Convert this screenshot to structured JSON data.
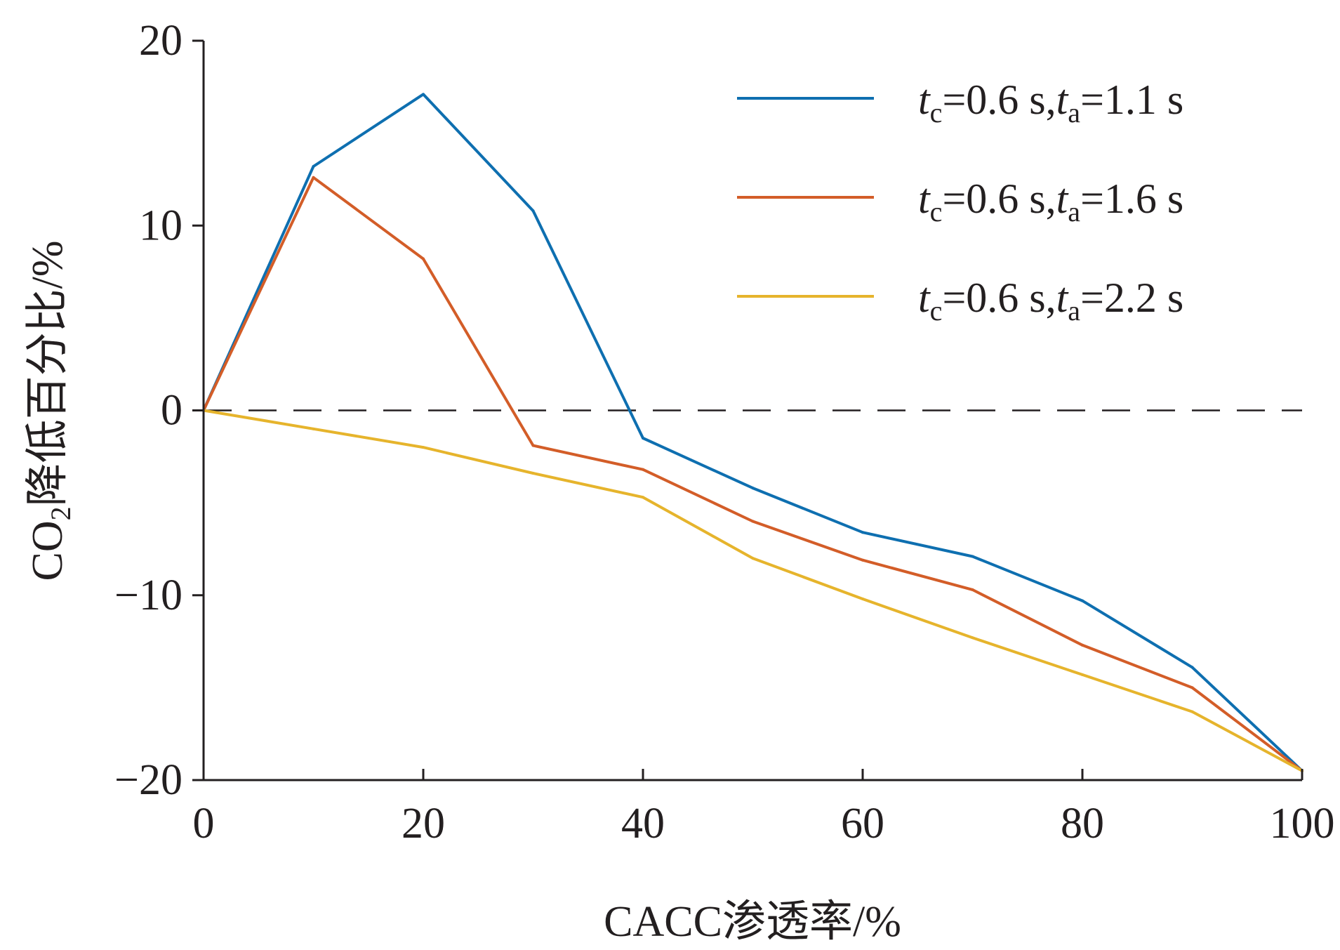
{
  "chart_data": {
    "type": "line",
    "xlabel": "CACC渗透率/%",
    "ylabel": {
      "prefix": "CO",
      "subscript": "2",
      "suffix": "降低百分比/%"
    },
    "xlim": [
      0,
      100
    ],
    "ylim": [
      -20,
      20
    ],
    "xticks": [
      0,
      20,
      40,
      60,
      80,
      100
    ],
    "yticks": [
      20,
      10,
      0,
      -10,
      -20
    ],
    "ytick_labels": [
      "20",
      "10",
      "0",
      "−10",
      "−20"
    ],
    "reference_line": {
      "y": 0,
      "style": "dashed"
    },
    "legend_position": "top-right",
    "x": [
      0,
      10,
      20,
      30,
      40,
      50,
      60,
      70,
      80,
      90,
      100
    ],
    "series": [
      {
        "name": "tc=0.6 s,ta=1.1 s",
        "label_parts": {
          "t1": "t",
          "s1": "c",
          "mid": "=0.6 s,",
          "t2": "t",
          "s2": "a",
          "end": "=1.1 s"
        },
        "color": "#0e6fb0",
        "values": [
          0,
          13.2,
          17.1,
          10.8,
          -1.5,
          -4.2,
          -6.6,
          -7.9,
          -10.3,
          -13.9,
          -19.5
        ]
      },
      {
        "name": "tc=0.6 s,ta=1.6 s",
        "label_parts": {
          "t1": "t",
          "s1": "c",
          "mid": "=0.6 s,",
          "t2": "t",
          "s2": "a",
          "end": "=1.6 s"
        },
        "color": "#d35d28",
        "values": [
          0,
          12.6,
          8.2,
          -1.9,
          -3.2,
          -6.0,
          -8.1,
          -9.7,
          -12.7,
          -15.0,
          -19.5
        ]
      },
      {
        "name": "tc=0.6 s,ta=2.2 s",
        "label_parts": {
          "t1": "t",
          "s1": "c",
          "mid": "=0.6 s,",
          "t2": "t",
          "s2": "a",
          "end": "=2.2 s"
        },
        "color": "#e6b42c",
        "values": [
          0,
          -1.0,
          -2.0,
          -3.4,
          -4.7,
          -8.0,
          -10.2,
          -12.3,
          -14.3,
          -16.3,
          -19.5
        ]
      }
    ]
  }
}
